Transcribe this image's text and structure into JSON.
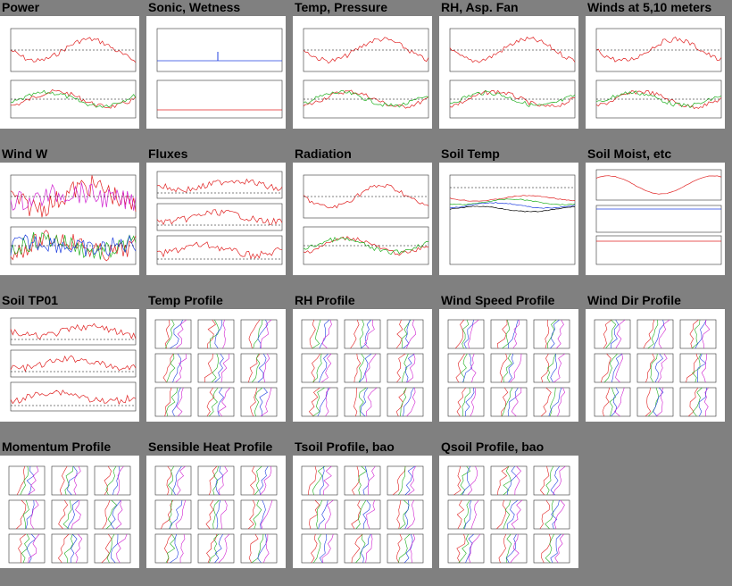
{
  "tiles": [
    {
      "title": "Power",
      "kind": "timeseries2"
    },
    {
      "title": "Sonic, Wetness",
      "kind": "sonic"
    },
    {
      "title": "Temp, Pressure",
      "kind": "timeseries2"
    },
    {
      "title": "RH, Asp. Fan",
      "kind": "timeseries2"
    },
    {
      "title": "Winds at 5,10 meters",
      "kind": "timeseries2"
    },
    {
      "title": "Wind W",
      "kind": "noisy2"
    },
    {
      "title": "Fluxes",
      "kind": "timeseries3"
    },
    {
      "title": "Radiation",
      "kind": "timeseries2"
    },
    {
      "title": "Soil Temp",
      "kind": "soiltemp"
    },
    {
      "title": "Soil Moist, etc",
      "kind": "soilmoist"
    },
    {
      "title": "Soil TP01",
      "kind": "timeseries3"
    },
    {
      "title": "Temp Profile",
      "kind": "profile"
    },
    {
      "title": "RH Profile",
      "kind": "profile"
    },
    {
      "title": "Wind Speed Profile",
      "kind": "profile"
    },
    {
      "title": "Wind Dir Profile",
      "kind": "profile"
    },
    {
      "title": "Momentum Profile",
      "kind": "profile"
    },
    {
      "title": "Sensible Heat Profile",
      "kind": "profile"
    },
    {
      "title": "Tsoil Profile, bao",
      "kind": "profile"
    },
    {
      "title": "Qsoil Profile, bao",
      "kind": "profile"
    }
  ],
  "colors": {
    "background": "#808080",
    "panel": "#ffffff",
    "line_red": "#e02020",
    "line_green": "#20b020",
    "line_blue": "#2040e0",
    "line_magenta": "#d020d0"
  }
}
